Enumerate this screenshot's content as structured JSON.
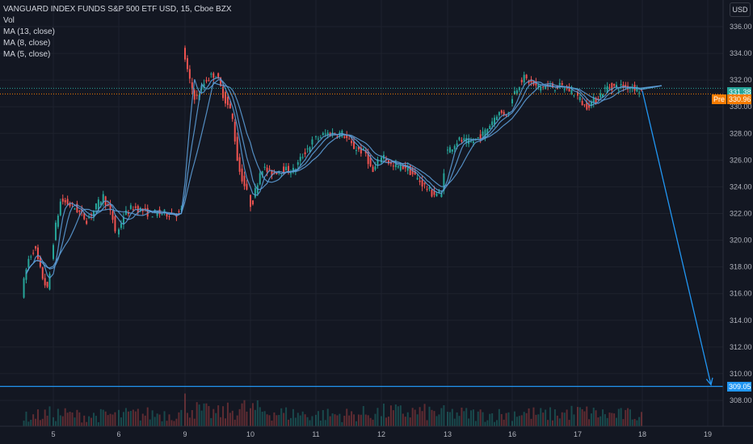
{
  "chart_data": {
    "type": "candlestick",
    "title": "VANGUARD INDEX FUNDS S&P 500 ETF USD, 15, Cboe BZX",
    "legend": [
      "Vol",
      "MA (13, close)",
      "MA (8, close)",
      "MA (5, close)"
    ],
    "currency": "USD",
    "ylim": [
      307.2,
      337.0
    ],
    "y_ticks": [
      "336.00",
      "334.00",
      "332.00",
      "330.00",
      "328.00",
      "326.00",
      "324.00",
      "322.00",
      "320.00",
      "318.00",
      "316.00",
      "314.00",
      "312.00",
      "310.00",
      "308.00"
    ],
    "x_ticks": [
      "5",
      "6",
      "9",
      "10",
      "11",
      "12",
      "13",
      "16",
      "17",
      "18",
      "19"
    ],
    "price_lines": [
      {
        "label": "331.38",
        "value": 331.38,
        "color": "#26a69a"
      },
      {
        "label": "Pre",
        "value": 330.96,
        "color": "#f57c00"
      },
      {
        "label": "330.96",
        "value": 330.96,
        "color": "#f57c00"
      },
      {
        "label": "309.05",
        "value": 309.05,
        "color": "#2196f3"
      }
    ],
    "projection": {
      "from": [
        18.0,
        331.2
      ],
      "to": [
        19.0,
        309.05
      ]
    },
    "price_path": [
      [
        4.55,
        316.0
      ],
      [
        4.65,
        318.5
      ],
      [
        4.75,
        319.5
      ],
      [
        4.85,
        317.5
      ],
      [
        4.95,
        316.2
      ],
      [
        5.05,
        320.5
      ],
      [
        5.15,
        323.0
      ],
      [
        5.35,
        322.5
      ],
      [
        5.55,
        321.5
      ],
      [
        5.8,
        323.3
      ],
      [
        5.95,
        321.5
      ],
      [
        6.0,
        320.2
      ],
      [
        6.1,
        321.8
      ],
      [
        6.25,
        322.5
      ],
      [
        6.5,
        322.0
      ],
      [
        6.75,
        322.0
      ],
      [
        6.95,
        322.0
      ],
      [
        9.0,
        334.5
      ],
      [
        9.1,
        332.0
      ],
      [
        9.2,
        330.5
      ],
      [
        9.35,
        332.0
      ],
      [
        9.5,
        332.5
      ],
      [
        9.65,
        330.5
      ],
      [
        9.75,
        329.5
      ],
      [
        9.85,
        325.5
      ],
      [
        9.95,
        324.0
      ],
      [
        10.05,
        322.5
      ],
      [
        10.2,
        325.5
      ],
      [
        10.35,
        325.0
      ],
      [
        10.5,
        325.3
      ],
      [
        10.7,
        325.2
      ],
      [
        10.85,
        326.5
      ],
      [
        11.0,
        327.5
      ],
      [
        11.2,
        328.0
      ],
      [
        11.45,
        328.0
      ],
      [
        11.6,
        327.0
      ],
      [
        11.8,
        326.5
      ],
      [
        11.9,
        325.0
      ],
      [
        12.05,
        326.5
      ],
      [
        12.2,
        325.5
      ],
      [
        12.4,
        325.5
      ],
      [
        12.6,
        324.5
      ],
      [
        12.8,
        323.5
      ],
      [
        12.95,
        323.5
      ],
      [
        13.0,
        326.5
      ],
      [
        13.2,
        327.5
      ],
      [
        13.4,
        327.3
      ],
      [
        13.6,
        328.0
      ],
      [
        13.8,
        329.5
      ],
      [
        13.95,
        329.5
      ],
      [
        16.0,
        330.5
      ],
      [
        16.2,
        332.2
      ],
      [
        16.4,
        331.5
      ],
      [
        16.6,
        331.5
      ],
      [
        16.8,
        331.5
      ],
      [
        17.0,
        331.0
      ],
      [
        17.15,
        330.0
      ],
      [
        17.3,
        330.5
      ],
      [
        17.5,
        331.5
      ],
      [
        17.7,
        331.5
      ],
      [
        17.9,
        331.5
      ],
      [
        18.0,
        331.2
      ]
    ],
    "volume_profile": [
      [
        4.55,
        0.35
      ],
      [
        5.0,
        0.5
      ],
      [
        5.5,
        0.4
      ],
      [
        6.0,
        0.45
      ],
      [
        6.9,
        0.5
      ],
      [
        9.0,
        0.9
      ],
      [
        9.2,
        0.6
      ],
      [
        9.5,
        0.5
      ],
      [
        9.9,
        0.7
      ],
      [
        10.5,
        0.5
      ],
      [
        11.0,
        0.45
      ],
      [
        11.5,
        0.45
      ],
      [
        12.0,
        0.55
      ],
      [
        12.6,
        0.55
      ],
      [
        13.0,
        0.5
      ],
      [
        13.6,
        0.45
      ],
      [
        16.0,
        0.55
      ],
      [
        16.5,
        0.45
      ],
      [
        17.0,
        0.55
      ],
      [
        17.5,
        0.45
      ],
      [
        18.0,
        0.45
      ]
    ],
    "colors": {
      "up": "#26a69a",
      "down": "#ef5350",
      "ma": "#5b9bd5",
      "grid": "#1e222d",
      "background": "#131722",
      "axis_text": "#b2b5be"
    }
  }
}
